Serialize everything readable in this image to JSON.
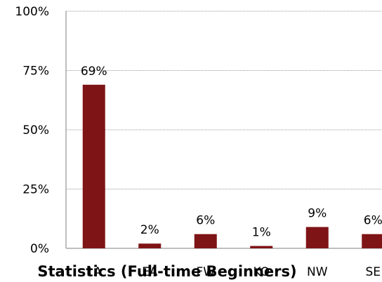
{
  "chart_data": {
    "type": "bar",
    "title": "Statistics (Full-time Beginners)",
    "categories": [
      "1A",
      "EA",
      "FW",
      "KO",
      "NW",
      "SE"
    ],
    "values": [
      69,
      2,
      6,
      1,
      9,
      6
    ],
    "data_labels": [
      "69%",
      "2%",
      "6%",
      "1%",
      "9%",
      "6%"
    ],
    "ylim": [
      0,
      100
    ],
    "yticks": [
      0,
      25,
      50,
      75,
      100
    ],
    "ytick_labels": [
      "0%",
      "25%",
      "50%",
      "75%",
      "100%"
    ],
    "xlabel": "",
    "ylabel": "",
    "grid": true,
    "colors": {
      "bar": "#7f1416",
      "grid": "#9a9a9a",
      "axis": "#7f7f7f"
    }
  }
}
